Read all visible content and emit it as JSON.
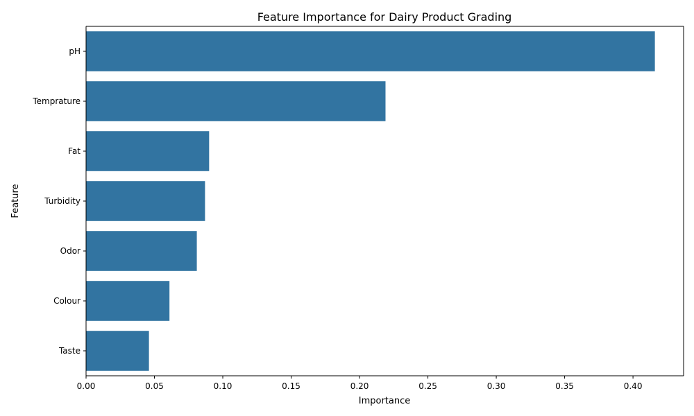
{
  "chart_data": {
    "type": "bar",
    "orientation": "horizontal",
    "title": "Feature Importance for Dairy Product Grading",
    "xlabel": "Importance",
    "ylabel": "Feature",
    "categories": [
      "pH",
      "Temprature",
      "Fat ",
      "Turbidity",
      "Odor",
      "Colour",
      "Taste"
    ],
    "values": [
      0.416,
      0.219,
      0.09,
      0.087,
      0.081,
      0.061,
      0.046
    ],
    "xlim": [
      0,
      0.437
    ],
    "xticks": [
      0.0,
      0.05,
      0.1,
      0.15,
      0.2,
      0.25,
      0.3,
      0.35,
      0.4
    ],
    "xtick_labels": [
      "0.00",
      "0.05",
      "0.10",
      "0.15",
      "0.20",
      "0.25",
      "0.30",
      "0.35",
      "0.40"
    ],
    "grid": false,
    "bar_color": "#3274a1"
  }
}
